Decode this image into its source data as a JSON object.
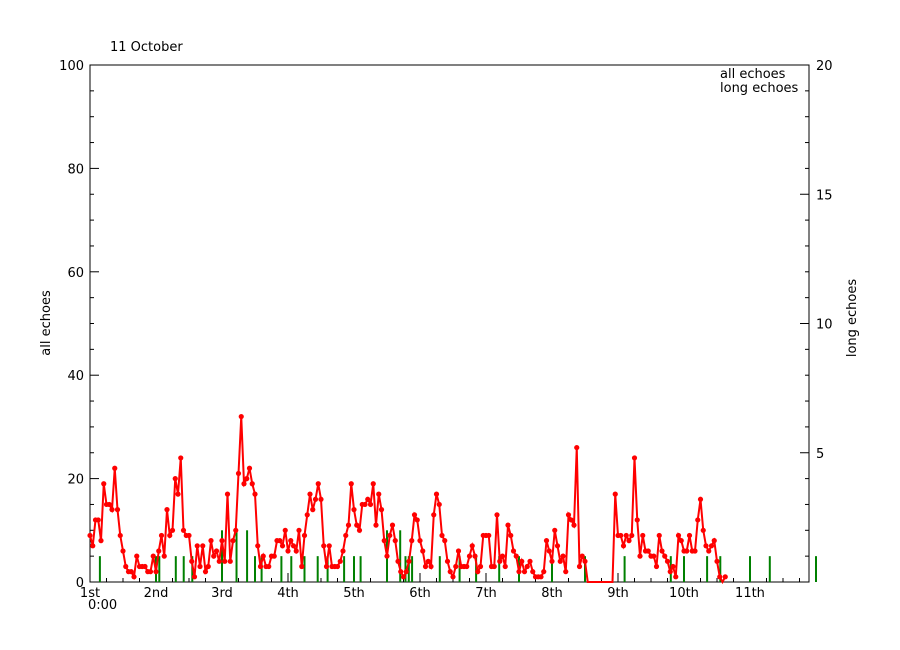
{
  "chart_data": {
    "type": "line",
    "title": "11 October",
    "xlabel": "",
    "x_start_label": "0:00",
    "x_ticks": [
      "1st",
      "2nd",
      "3rd",
      "4th",
      "5th",
      "6th",
      "7th",
      "8th",
      "9th",
      "10th",
      "11th"
    ],
    "x_unit": "days from 1st 0:00",
    "xlim": [
      0,
      11
    ],
    "ylabel_left": "all echoes",
    "ylim_left": [
      0,
      100
    ],
    "yticks_left": [
      "0",
      "20",
      "40",
      "60",
      "80",
      "100"
    ],
    "ylabel_right": "long echoes",
    "ylim_right": [
      0,
      20
    ],
    "yticks_right": [
      "5",
      "10",
      "15",
      "20"
    ],
    "legend_position": "top-right",
    "grid": false,
    "series": [
      {
        "name": "all echoes",
        "color": "#ff0000",
        "axis": "left",
        "marker": "dot",
        "bin_hours": 1,
        "values": [
          9,
          7,
          12,
          12,
          8,
          19,
          15,
          15,
          14,
          22,
          14,
          9,
          6,
          3,
          2,
          2,
          1,
          5,
          3,
          3,
          3,
          2,
          2,
          5,
          2,
          6,
          9,
          5,
          14,
          9,
          10,
          20,
          17,
          24,
          10,
          9,
          9,
          4,
          1,
          7,
          3,
          7,
          2,
          3,
          8,
          5,
          6,
          4,
          8,
          4,
          17,
          4,
          8,
          10,
          21,
          32,
          19,
          20,
          22,
          19,
          17,
          7,
          3,
          5,
          3,
          3,
          5,
          5,
          8,
          8,
          7,
          10,
          6,
          8,
          7,
          6,
          10,
          3,
          9,
          13,
          17,
          14,
          16,
          19,
          16,
          7,
          3,
          7,
          3,
          3,
          3,
          4,
          6,
          9,
          11,
          19,
          14,
          11,
          10,
          15,
          15,
          16,
          15,
          19,
          11,
          17,
          14,
          8,
          5,
          9,
          11,
          8,
          4,
          2,
          1,
          2,
          4,
          8,
          13,
          12,
          8,
          6,
          3,
          4,
          3,
          13,
          17,
          15,
          9,
          8,
          4,
          2,
          1,
          3,
          6,
          3,
          3,
          3,
          5,
          7,
          5,
          2,
          3,
          9,
          9,
          9,
          3,
          3,
          13,
          4,
          5,
          3,
          11,
          9,
          6,
          5,
          2,
          4,
          2,
          3,
          4,
          2,
          1,
          1,
          1,
          2,
          8,
          6,
          4,
          10,
          7,
          4,
          5,
          2,
          13,
          12,
          11,
          26,
          3,
          5,
          4,
          0,
          0,
          0,
          0,
          0,
          0,
          0,
          0,
          0,
          0,
          17,
          9,
          9,
          7,
          9,
          8,
          9,
          24,
          12,
          5,
          9,
          6,
          6,
          5,
          5,
          3,
          9,
          6,
          5,
          4,
          2,
          3,
          1,
          9,
          8,
          6,
          6,
          9,
          6,
          6,
          12,
          16,
          10,
          7,
          6,
          7,
          8,
          4,
          1,
          0,
          1
        ]
      },
      {
        "name": "long echoes",
        "color": "#008000",
        "axis": "right",
        "style": "bars",
        "points": [
          [
            0.15,
            1
          ],
          [
            1.0,
            1
          ],
          [
            1.05,
            1
          ],
          [
            1.3,
            1
          ],
          [
            1.42,
            1
          ],
          [
            1.55,
            1
          ],
          [
            2.0,
            2
          ],
          [
            2.22,
            2
          ],
          [
            2.38,
            2
          ],
          [
            2.5,
            1
          ],
          [
            2.6,
            1
          ],
          [
            2.9,
            1
          ],
          [
            3.05,
            1
          ],
          [
            3.25,
            1
          ],
          [
            3.45,
            1
          ],
          [
            3.6,
            1
          ],
          [
            3.85,
            1
          ],
          [
            4.0,
            1
          ],
          [
            4.1,
            1
          ],
          [
            4.5,
            2
          ],
          [
            4.7,
            2
          ],
          [
            4.78,
            1
          ],
          [
            4.83,
            1
          ],
          [
            4.88,
            1
          ],
          [
            5.3,
            1
          ],
          [
            5.6,
            1
          ],
          [
            5.85,
            1
          ],
          [
            6.2,
            1
          ],
          [
            6.5,
            1
          ],
          [
            7.0,
            1
          ],
          [
            7.5,
            1
          ],
          [
            8.1,
            1
          ],
          [
            8.8,
            1
          ],
          [
            9.0,
            1
          ],
          [
            9.35,
            1
          ],
          [
            9.55,
            1
          ],
          [
            10.0,
            1
          ],
          [
            10.3,
            1
          ],
          [
            11.0,
            1
          ]
        ]
      }
    ]
  }
}
